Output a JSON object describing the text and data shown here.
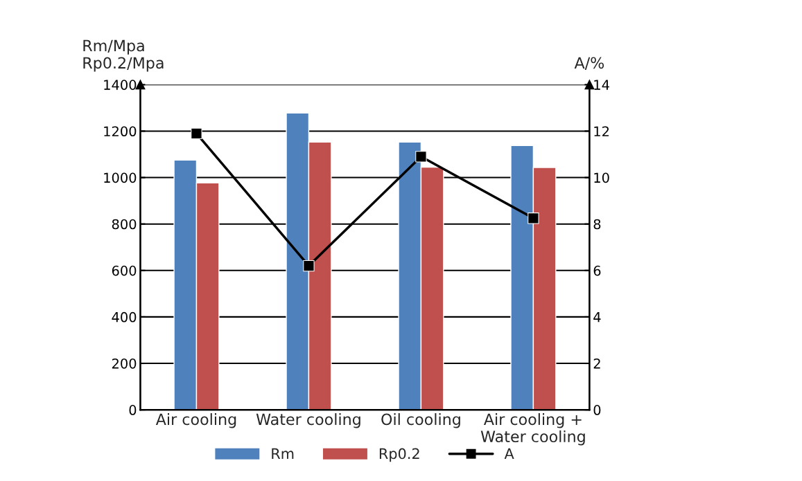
{
  "chart_data": {
    "type": "bar",
    "categories": [
      "Air cooling",
      "Water cooling",
      "Oil cooling",
      "Air cooling +\nWater cooling"
    ],
    "series": [
      {
        "name": "Rm",
        "color": "#4f81bd",
        "values": [
          1075,
          1278,
          1153,
          1138
        ]
      },
      {
        "name": "Rp0.2",
        "color": "#c0504d",
        "values": [
          977,
          1153,
          1045,
          1043
        ]
      },
      {
        "name": "A",
        "type": "line",
        "axis": "y2",
        "color": "#000000",
        "marker": "square",
        "values": [
          11.9,
          6.2,
          10.9,
          8.25
        ]
      }
    ],
    "ylabel": "Rm/Mpa\nRp0.2/Mpa",
    "y2label": "A/%",
    "ylim": [
      0,
      1400
    ],
    "yticks": [
      0,
      200,
      400,
      600,
      800,
      1000,
      1200,
      1400
    ],
    "y2lim": [
      0,
      14
    ],
    "y2ticks": [
      0,
      2,
      4,
      6,
      8,
      10,
      12,
      14
    ],
    "grid": "y",
    "legend": "bottom"
  }
}
